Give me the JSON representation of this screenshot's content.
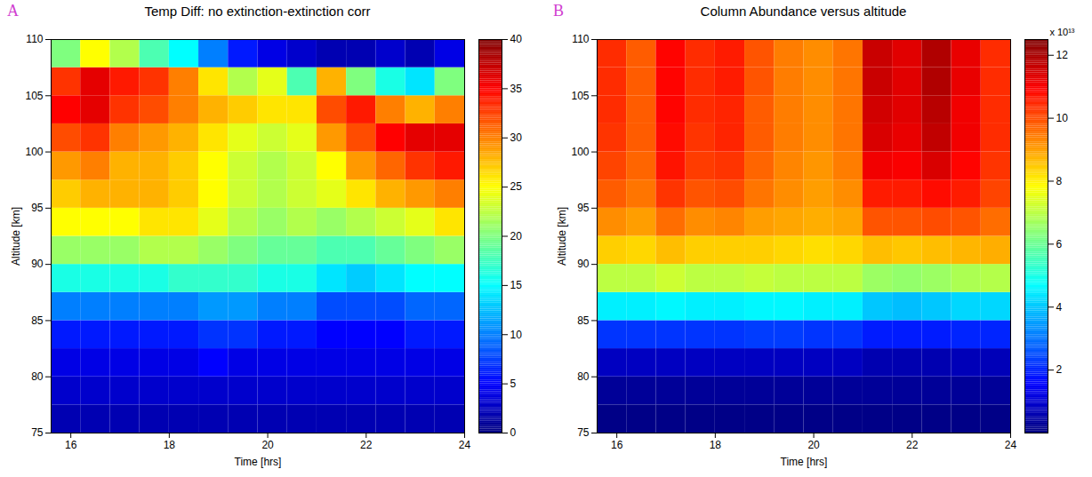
{
  "chart_data": [
    {
      "type": "heatmap",
      "panel_label": "A",
      "title": "Temp Diff: no extinction-extinction corr",
      "x_label": "Time [hrs]",
      "y_label": "Altitude [km]",
      "x": [
        15.6,
        16.2,
        16.8,
        17.4,
        18.0,
        18.6,
        19.2,
        19.8,
        20.4,
        21.0,
        21.6,
        22.2,
        22.8,
        23.4,
        24.0
      ],
      "y": [
        75,
        77.5,
        80,
        82.5,
        85,
        87.5,
        90,
        92.5,
        95,
        97.5,
        100,
        102.5,
        105,
        107.5,
        110
      ],
      "values": [
        [
          2,
          2,
          2,
          2,
          2,
          2,
          2,
          2,
          2,
          2,
          2,
          2,
          2,
          2
        ],
        [
          3,
          3,
          3,
          3,
          3,
          3,
          3,
          3,
          3,
          3,
          3,
          3,
          3,
          3
        ],
        [
          4,
          4,
          4,
          4,
          4,
          5,
          4,
          4,
          4,
          4,
          4,
          4,
          4,
          4
        ],
        [
          6,
          6,
          6,
          6,
          6,
          7,
          7,
          6,
          6,
          5,
          5,
          5,
          6,
          6
        ],
        [
          10,
          10,
          10,
          10,
          10,
          11,
          11,
          10,
          10,
          8,
          8,
          8,
          9,
          9
        ],
        [
          16,
          16,
          16,
          16,
          17,
          17,
          17,
          16,
          16,
          14,
          13,
          14,
          15,
          15
        ],
        [
          21,
          21,
          21,
          22,
          22,
          21,
          20,
          19,
          19,
          18,
          18,
          19,
          20,
          21
        ],
        [
          25,
          25,
          25,
          26,
          26,
          24,
          22,
          21,
          22,
          21,
          22,
          23,
          24,
          26
        ],
        [
          27,
          28,
          28,
          28,
          27,
          25,
          23,
          22,
          23,
          24,
          26,
          28,
          29,
          30
        ],
        [
          29,
          30,
          28,
          28,
          27,
          25,
          23,
          22,
          23,
          25,
          29,
          31,
          33,
          34
        ],
        [
          32,
          33,
          30,
          29,
          28,
          26,
          24,
          23,
          24,
          29,
          32,
          35,
          36,
          36
        ],
        [
          35,
          36,
          33,
          32,
          30,
          28,
          27,
          26,
          26,
          32,
          34,
          30,
          28,
          30
        ],
        [
          33,
          36,
          34,
          33,
          30,
          26,
          22,
          24,
          18,
          28,
          20,
          16,
          14,
          20
        ],
        [
          20,
          25,
          22,
          18,
          15,
          10,
          6,
          4,
          3,
          2,
          2,
          3,
          2,
          4
        ]
      ],
      "xlim": [
        15.6,
        24
      ],
      "xticks": [
        16,
        18,
        20,
        22,
        24
      ],
      "ylim": [
        75,
        110
      ],
      "yticks": [
        75,
        80,
        85,
        90,
        95,
        100,
        105,
        110
      ],
      "colorbar_range": [
        0,
        40
      ],
      "colorbar_ticks": [
        0,
        5,
        10,
        15,
        20,
        25,
        30,
        35,
        40
      ]
    },
    {
      "type": "heatmap",
      "panel_label": "B",
      "title": "Column Abundance versus altitude",
      "x_label": "Time [hrs]",
      "y_label": "Altitude [km]",
      "x": [
        15.6,
        16.2,
        16.8,
        17.4,
        18.0,
        18.6,
        19.2,
        19.8,
        20.4,
        21.0,
        21.6,
        22.2,
        22.8,
        23.4,
        24.0
      ],
      "y": [
        75,
        77.5,
        80,
        82.5,
        85,
        87.5,
        90,
        92.5,
        95,
        97.5,
        100,
        102.5,
        105,
        107.5,
        110
      ],
      "values": [
        [
          0.1,
          0.1,
          0.1,
          0.1,
          0.1,
          0.1,
          0.1,
          0.1,
          0.1,
          0.1,
          0.1,
          0.1,
          0.1,
          0.1
        ],
        [
          0.3,
          0.3,
          0.3,
          0.3,
          0.3,
          0.3,
          0.3,
          0.3,
          0.3,
          0.3,
          0.3,
          0.3,
          0.3,
          0.3
        ],
        [
          0.8,
          0.8,
          0.8,
          0.8,
          0.8,
          0.8,
          0.8,
          0.8,
          0.8,
          0.6,
          0.6,
          0.6,
          0.7,
          0.7
        ],
        [
          2.2,
          2.2,
          2.2,
          2.2,
          2.2,
          2.3,
          2.3,
          2.2,
          2.2,
          1.9,
          1.9,
          1.9,
          2.0,
          2.0
        ],
        [
          4.5,
          4.5,
          4.6,
          4.5,
          4.5,
          4.6,
          4.6,
          4.5,
          4.5,
          4.0,
          3.9,
          4.0,
          4.2,
          4.2
        ],
        [
          7.0,
          7.0,
          7.2,
          7.0,
          7.0,
          7.1,
          7.0,
          7.0,
          7.0,
          6.6,
          6.5,
          6.6,
          6.8,
          6.9
        ],
        [
          8.4,
          8.3,
          8.6,
          8.4,
          8.4,
          8.4,
          8.3,
          8.2,
          8.3,
          8.6,
          8.5,
          8.6,
          8.7,
          8.8
        ],
        [
          9.2,
          9.0,
          9.6,
          9.2,
          9.3,
          9.0,
          8.9,
          8.8,
          8.9,
          9.9,
          9.9,
          10.0,
          9.9,
          9.6
        ],
        [
          9.8,
          9.5,
          10.3,
          9.9,
          10.0,
          9.5,
          9.2,
          9.0,
          9.2,
          10.6,
          10.6,
          10.8,
          10.6,
          10.1
        ],
        [
          10.1,
          9.7,
          10.7,
          10.2,
          10.3,
          9.7,
          9.3,
          9.1,
          9.4,
          11.1,
          11.0,
          11.4,
          10.9,
          10.3
        ],
        [
          10.3,
          9.8,
          10.8,
          10.3,
          10.5,
          9.8,
          9.4,
          9.2,
          9.5,
          11.4,
          11.2,
          11.7,
          11.1,
          10.4
        ],
        [
          10.4,
          9.8,
          10.9,
          10.4,
          10.5,
          9.8,
          9.4,
          9.2,
          9.5,
          11.5,
          11.3,
          11.8,
          11.1,
          10.4
        ],
        [
          10.4,
          9.8,
          10.9,
          10.4,
          10.6,
          9.9,
          9.4,
          9.2,
          9.5,
          11.6,
          11.3,
          11.9,
          11.2,
          10.4
        ],
        [
          10.4,
          9.8,
          10.9,
          10.4,
          10.6,
          9.9,
          9.4,
          9.2,
          9.5,
          11.6,
          11.3,
          11.9,
          11.2,
          10.4
        ]
      ],
      "xlim": [
        15.6,
        24
      ],
      "xticks": [
        16,
        18,
        20,
        22,
        24
      ],
      "ylim": [
        75,
        110
      ],
      "yticks": [
        75,
        80,
        85,
        90,
        95,
        100,
        105,
        110
      ],
      "colorbar_range": [
        0,
        12.5
      ],
      "colorbar_ticks": [
        2,
        4,
        6,
        8,
        10,
        12
      ],
      "colorbar_label": "x 10¹³"
    }
  ]
}
